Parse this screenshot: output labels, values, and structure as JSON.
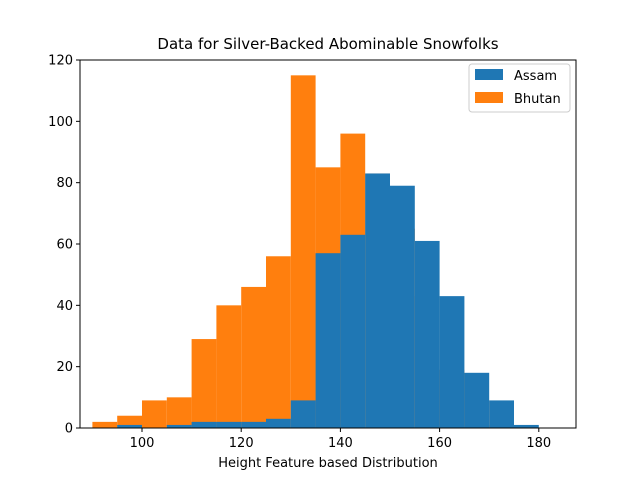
{
  "chart_data": {
    "type": "bar",
    "stacked": true,
    "title": "Data for Silver-Backed Abominable Snowfolks",
    "xlabel": "Height Feature based Distribution",
    "ylabel": "",
    "xlim": [
      87.5,
      187.5
    ],
    "ylim": [
      0,
      120
    ],
    "xticks": [
      100,
      120,
      140,
      160,
      180
    ],
    "yticks": [
      0,
      20,
      40,
      60,
      80,
      100,
      120
    ],
    "bin_width": 5,
    "grid": false,
    "legend_position": "top-right",
    "series": [
      {
        "name": "Assam",
        "color": "#1f77b4",
        "bins": [
          {
            "x0": 95,
            "x1": 100,
            "value": 1
          },
          {
            "x0": 100,
            "x1": 105,
            "value": 0
          },
          {
            "x0": 105,
            "x1": 110,
            "value": 1
          },
          {
            "x0": 110,
            "x1": 115,
            "value": 2
          },
          {
            "x0": 115,
            "x1": 120,
            "value": 2
          },
          {
            "x0": 120,
            "x1": 125,
            "value": 2
          },
          {
            "x0": 125,
            "x1": 130,
            "value": 3
          },
          {
            "x0": 130,
            "x1": 135,
            "value": 9
          },
          {
            "x0": 135,
            "x1": 140,
            "value": 57
          },
          {
            "x0": 140,
            "x1": 145,
            "value": 63
          },
          {
            "x0": 145,
            "x1": 150,
            "value": 83
          },
          {
            "x0": 150,
            "x1": 155,
            "value": 79
          },
          {
            "x0": 155,
            "x1": 160,
            "value": 61
          },
          {
            "x0": 160,
            "x1": 165,
            "value": 43
          },
          {
            "x0": 165,
            "x1": 170,
            "value": 18
          },
          {
            "x0": 170,
            "x1": 175,
            "value": 9
          },
          {
            "x0": 175,
            "x1": 180,
            "value": 1
          }
        ]
      },
      {
        "name": "Bhutan",
        "color": "#ff7f0e",
        "bins": [
          {
            "x0": 90,
            "x1": 95,
            "total": 2
          },
          {
            "x0": 95,
            "x1": 100,
            "total": 4
          },
          {
            "x0": 100,
            "x1": 105,
            "total": 9
          },
          {
            "x0": 105,
            "x1": 110,
            "total": 10
          },
          {
            "x0": 110,
            "x1": 115,
            "total": 29
          },
          {
            "x0": 115,
            "x1": 120,
            "total": 40
          },
          {
            "x0": 120,
            "x1": 125,
            "total": 46
          },
          {
            "x0": 125,
            "x1": 130,
            "total": 56
          },
          {
            "x0": 130,
            "x1": 135,
            "total": 115
          },
          {
            "x0": 135,
            "x1": 140,
            "total": 85
          },
          {
            "x0": 140,
            "x1": 145,
            "total": 96
          },
          {
            "x0": 145,
            "x1": 150,
            "total": 83
          },
          {
            "x0": 150,
            "x1": 155,
            "total": 65
          },
          {
            "x0": 155,
            "x1": 160,
            "total": 43
          },
          {
            "x0": 160,
            "x1": 165,
            "total": 19
          },
          {
            "x0": 165,
            "x1": 170,
            "total": 9
          },
          {
            "x0": 170,
            "x1": 175,
            "total": 1
          }
        ]
      }
    ]
  }
}
